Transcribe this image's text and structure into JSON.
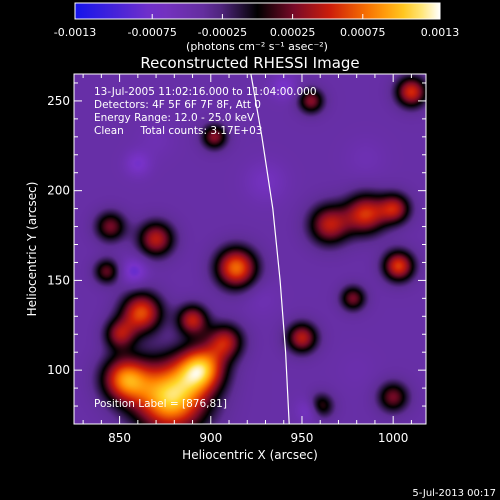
{
  "chart_data": {
    "type": "heatmap",
    "title": "Reconstructed RHESSI Image",
    "xlabel": "Heliocentric X (arcsec)",
    "ylabel": "Heliocentric Y (arcsec)",
    "xlim": [
      825,
      1018
    ],
    "ylim": [
      70,
      265
    ],
    "xticks": [
      850,
      900,
      950,
      1000
    ],
    "yticks": [
      100,
      150,
      200,
      250
    ],
    "colorbar": {
      "ticks": [
        "-0.0013",
        "-0.00075",
        "-0.00025",
        "0.00025",
        "0.00075",
        "0.0013"
      ],
      "units": "(photons cm⁻² s⁻¹ asec⁻²)",
      "range": [
        -0.0013,
        0.0013
      ]
    },
    "annotations": [
      "13-Jul-2005 11:02:16.000 to 11:04:00.000",
      "Detectors: 4F 5F 6F 7F 8F, Att 0",
      "Energy Range: 12.0 - 25.0 keV",
      "Clean     Total counts: 3.17E+03"
    ],
    "position_label": "Position Label = [876,81]",
    "limb": [
      [
        922,
        265
      ],
      [
        928,
        230
      ],
      [
        934,
        190
      ],
      [
        938,
        150
      ],
      [
        941,
        110
      ],
      [
        943,
        70
      ]
    ],
    "blobs": [
      {
        "x": 878,
        "y": 85,
        "sigma": 14,
        "value": 0.00125
      },
      {
        "x": 895,
        "y": 101,
        "sigma": 9,
        "value": 0.00095
      },
      {
        "x": 853,
        "y": 95,
        "sigma": 9,
        "value": 0.00085
      },
      {
        "x": 862,
        "y": 132,
        "sigma": 8,
        "value": 0.0008
      },
      {
        "x": 890,
        "y": 128,
        "sigma": 6,
        "value": 0.0006
      },
      {
        "x": 908,
        "y": 116,
        "sigma": 7,
        "value": 0.00055
      },
      {
        "x": 914,
        "y": 157,
        "sigma": 8,
        "value": 0.0009
      },
      {
        "x": 870,
        "y": 173,
        "sigma": 7,
        "value": 0.0006
      },
      {
        "x": 845,
        "y": 180,
        "sigma": 6,
        "value": 0.0004
      },
      {
        "x": 965,
        "y": 181,
        "sigma": 8,
        "value": 0.0006
      },
      {
        "x": 985,
        "y": 187,
        "sigma": 8,
        "value": 0.0007
      },
      {
        "x": 1003,
        "y": 158,
        "sigma": 6,
        "value": 0.00075
      },
      {
        "x": 1001,
        "y": 190,
        "sigma": 6,
        "value": 0.00055
      },
      {
        "x": 1010,
        "y": 255,
        "sigma": 6,
        "value": 0.0007
      },
      {
        "x": 955,
        "y": 250,
        "sigma": 5,
        "value": 0.00045
      },
      {
        "x": 978,
        "y": 140,
        "sigma": 5,
        "value": 0.0004
      },
      {
        "x": 950,
        "y": 118,
        "sigma": 6,
        "value": 0.0006
      },
      {
        "x": 960,
        "y": 80,
        "sigma": 5,
        "value": 0.0004
      },
      {
        "x": 1000,
        "y": 85,
        "sigma": 6,
        "value": 0.0004
      },
      {
        "x": 902,
        "y": 230,
        "sigma": 5,
        "value": 0.00045
      },
      {
        "x": 850,
        "y": 120,
        "sigma": 6,
        "value": 0.00045
      },
      {
        "x": 843,
        "y": 155,
        "sigma": 5,
        "value": 0.00035
      },
      {
        "x": 870,
        "y": 228,
        "sigma": 7,
        "value": -0.0004
      },
      {
        "x": 930,
        "y": 205,
        "sigma": 8,
        "value": -0.0005
      },
      {
        "x": 928,
        "y": 140,
        "sigma": 7,
        "value": -0.0004
      },
      {
        "x": 858,
        "y": 155,
        "sigma": 5,
        "value": -0.0007
      },
      {
        "x": 860,
        "y": 215,
        "sigma": 5,
        "value": -0.0006
      },
      {
        "x": 955,
        "y": 78,
        "sigma": 5,
        "value": -0.0007
      },
      {
        "x": 985,
        "y": 218,
        "sigma": 8,
        "value": -0.0004
      },
      {
        "x": 980,
        "y": 100,
        "sigma": 8,
        "value": -0.00035
      },
      {
        "x": 940,
        "y": 258,
        "sigma": 5,
        "value": -0.0006
      }
    ]
  },
  "footer": {
    "timestamp": "5-Jul-2013 00:17"
  }
}
